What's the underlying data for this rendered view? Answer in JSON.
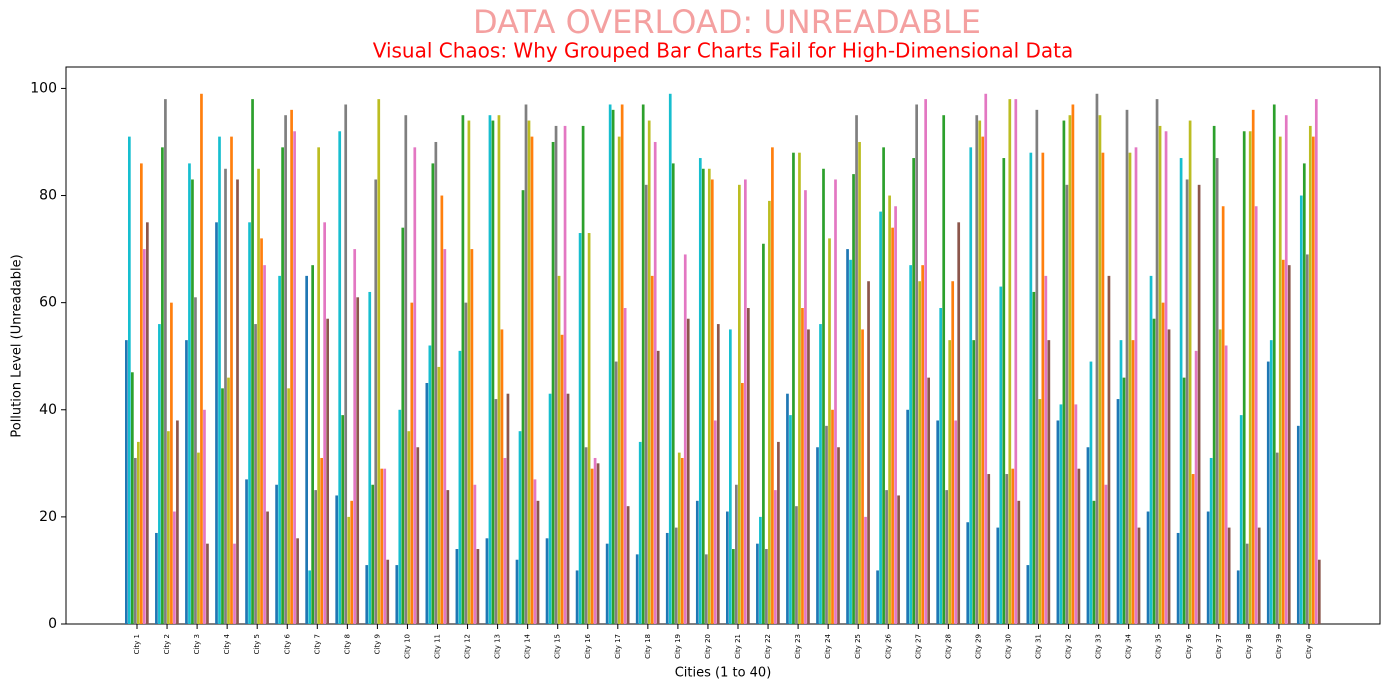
{
  "chart_data": {
    "type": "grouped_bar",
    "title": "DATA OVERLOAD: UNREADABLE",
    "subtitle": "Visual Chaos: Why Grouped Bar Charts Fail for High-Dimensional Data",
    "x_label": "Cities (1 to 40)",
    "y_label": "Pollution Level (Unreadable)",
    "categories": [
      "City 1",
      "City 2",
      "City 3",
      "City 4",
      "City 5",
      "City 6",
      "City 7",
      "City 8",
      "City 9",
      "City 10",
      "City 11",
      "City 12",
      "City 13",
      "City 14",
      "City 15",
      "City 16",
      "City 17",
      "City 18",
      "City 19",
      "City 20",
      "City 21",
      "City 22",
      "City 23",
      "City 24",
      "City 25",
      "City 26",
      "City 27",
      "City 28",
      "City 29",
      "City 30",
      "City 31",
      "City 32",
      "City 33",
      "City 34",
      "City 35",
      "City 36",
      "City 37",
      "City 38",
      "City 39",
      "City 40"
    ],
    "series": [
      {
        "color": "#1f77b4",
        "values": [
          53,
          17,
          53,
          75,
          27,
          26,
          65,
          24,
          11,
          11,
          45,
          14,
          16,
          12,
          16,
          10,
          15,
          13,
          17,
          23,
          21,
          15,
          43,
          33,
          70,
          10,
          40,
          38,
          19,
          18,
          11,
          38,
          33,
          42,
          21,
          17,
          21,
          10,
          49,
          37
        ]
      },
      {
        "color": "#17becf",
        "values": [
          91,
          56,
          86,
          91,
          75,
          65,
          10,
          92,
          62,
          40,
          52,
          51,
          95,
          36,
          43,
          73,
          97,
          34,
          99,
          87,
          55,
          20,
          39,
          56,
          68,
          77,
          67,
          59,
          89,
          63,
          88,
          41,
          49,
          53,
          65,
          87,
          31,
          39,
          53,
          80
        ]
      },
      {
        "color": "#2ca02c",
        "values": [
          47,
          89,
          83,
          44,
          98,
          89,
          67,
          39,
          26,
          74,
          86,
          95,
          94,
          81,
          90,
          93,
          96,
          97,
          86,
          85,
          14,
          71,
          88,
          85,
          84,
          89,
          87,
          95,
          53,
          87,
          62,
          94,
          23,
          46,
          57,
          46,
          93,
          92,
          97,
          86
        ]
      },
      {
        "color": "#7f7f7f",
        "values": [
          31,
          98,
          61,
          85,
          56,
          95,
          25,
          97,
          83,
          95,
          90,
          60,
          42,
          97,
          93,
          33,
          49,
          82,
          18,
          13,
          26,
          14,
          22,
          37,
          95,
          25,
          97,
          25,
          95,
          28,
          96,
          82,
          99,
          96,
          98,
          83,
          87,
          15,
          32,
          69
        ]
      },
      {
        "color": "#bcbd22",
        "values": [
          34,
          36,
          32,
          46,
          85,
          44,
          89,
          20,
          98,
          36,
          48,
          94,
          95,
          94,
          65,
          73,
          91,
          94,
          32,
          85,
          82,
          79,
          88,
          72,
          90,
          80,
          64,
          53,
          94,
          98,
          42,
          95,
          95,
          88,
          93,
          94,
          55,
          92,
          91,
          93
        ]
      },
      {
        "color": "#ff7f0e",
        "values": [
          86,
          60,
          99,
          91,
          72,
          96,
          31,
          23,
          29,
          60,
          80,
          70,
          55,
          91,
          54,
          29,
          97,
          65,
          31,
          83,
          45,
          89,
          59,
          40,
          55,
          74,
          67,
          64,
          91,
          29,
          88,
          97,
          88,
          53,
          60,
          28,
          78,
          96,
          68,
          91
        ]
      },
      {
        "color": "#e377c2",
        "values": [
          70,
          21,
          40,
          15,
          67,
          92,
          75,
          70,
          29,
          89,
          70,
          26,
          31,
          27,
          93,
          31,
          59,
          90,
          69,
          38,
          83,
          25,
          81,
          83,
          20,
          78,
          98,
          38,
          99,
          98,
          65,
          41,
          26,
          89,
          92,
          51,
          52,
          78,
          95,
          98
        ]
      },
      {
        "color": "#8c564b",
        "values": [
          75,
          38,
          15,
          83,
          21,
          16,
          57,
          61,
          12,
          33,
          25,
          14,
          43,
          23,
          43,
          30,
          22,
          51,
          57,
          56,
          59,
          34,
          55,
          33,
          64,
          24,
          46,
          75,
          28,
          23,
          53,
          29,
          65,
          18,
          55,
          82,
          18,
          18,
          67,
          12
        ]
      }
    ],
    "ylim": [
      0,
      104
    ],
    "yticks": [
      0,
      20,
      40,
      60,
      80,
      100
    ]
  }
}
